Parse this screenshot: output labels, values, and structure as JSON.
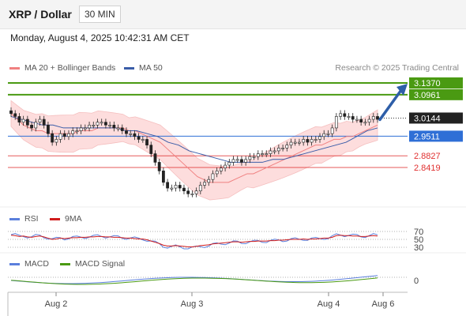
{
  "header": {
    "title": "XRP / Dollar",
    "interval": "30 MIN"
  },
  "datetime": "Monday, August 4, 2025 10:42:31 AM CET",
  "legend": {
    "ma20": "MA 20 + Bollinger Bands",
    "ma50": "MA 50",
    "credit": "Research © 2025 Trading Central",
    "rsi": "RSI",
    "rsi_ma": "9MA",
    "macd": "MACD",
    "macd_signal": "MACD Signal"
  },
  "colors": {
    "ma20": "#f08080",
    "ma50": "#3a5ca8",
    "bb_fill": "#fdd8d8",
    "target": "#4a9a12",
    "pivot": "#2f6fd6",
    "support": "#e03030",
    "last_price": "#222222",
    "arrow": "#2e5ea8",
    "rsi": "#5b7fdc",
    "rsi_ma": "#d01c1c",
    "macd": "#5b7fdc",
    "macd_signal": "#4a9a12"
  },
  "chart_data": {
    "type": "candlestick",
    "price_levels": [
      {
        "label": "3.1370",
        "value": 3.137,
        "kind": "target"
      },
      {
        "label": "3.0961",
        "value": 3.0961,
        "kind": "target"
      },
      {
        "label": "3.0144",
        "value": 3.0144,
        "kind": "last"
      },
      {
        "label": "2.9511",
        "value": 2.9511,
        "kind": "pivot"
      },
      {
        "label": "2.8827",
        "value": 2.8827,
        "kind": "support"
      },
      {
        "label": "2.8419",
        "value": 2.8419,
        "kind": "support"
      }
    ],
    "x_labels": [
      "Aug 2",
      "Aug 3",
      "Aug 4",
      "Aug 6"
    ],
    "close": [
      3.03,
      3.02,
      3.0,
      3.01,
      2.99,
      2.98,
      3.0,
      3.01,
      2.99,
      2.96,
      2.93,
      2.94,
      2.96,
      2.95,
      2.96,
      2.97,
      2.97,
      2.98,
      2.98,
      2.99,
      2.99,
      3.0,
      3.0,
      2.99,
      2.99,
      2.98,
      2.98,
      2.97,
      2.96,
      2.96,
      2.95,
      2.94,
      2.94,
      2.92,
      2.89,
      2.86,
      2.83,
      2.79,
      2.77,
      2.77,
      2.78,
      2.77,
      2.76,
      2.75,
      2.75,
      2.76,
      2.78,
      2.79,
      2.8,
      2.82,
      2.83,
      2.84,
      2.85,
      2.86,
      2.87,
      2.87,
      2.86,
      2.87,
      2.88,
      2.88,
      2.89,
      2.89,
      2.89,
      2.9,
      2.9,
      2.91,
      2.91,
      2.92,
      2.93,
      2.93,
      2.93,
      2.94,
      2.93,
      2.94,
      2.94,
      2.95,
      2.96,
      2.96,
      2.98,
      3.02,
      3.03,
      3.02,
      3.02,
      3.01,
      3.01,
      3.0,
      3.0,
      3.01,
      3.02,
      3.01
    ],
    "ma20": [
      3.03,
      3.01,
      2.99,
      2.98,
      2.97,
      2.97,
      2.96,
      2.96,
      2.96,
      2.96,
      2.96,
      2.97,
      2.97,
      2.97,
      2.98,
      2.98,
      2.98,
      2.98,
      2.98,
      2.97,
      2.97,
      2.96,
      2.95,
      2.94,
      2.93,
      2.91,
      2.89,
      2.87,
      2.85,
      2.83,
      2.81,
      2.8,
      2.79,
      2.79,
      2.79,
      2.79,
      2.8,
      2.81,
      2.82,
      2.82,
      2.83,
      2.84,
      2.85,
      2.86,
      2.87,
      2.88,
      2.89,
      2.9,
      2.91,
      2.92,
      2.92,
      2.93,
      2.94,
      2.94,
      2.95,
      2.95,
      2.96,
      2.97,
      2.98,
      2.99
    ],
    "ma50": [
      3.02,
      3.01,
      3.0,
      2.99,
      2.99,
      2.98,
      2.98,
      2.98,
      2.98,
      2.98,
      2.98,
      2.97,
      2.97,
      2.96,
      2.95,
      2.93,
      2.92,
      2.9,
      2.89,
      2.88,
      2.87,
      2.86,
      2.86,
      2.86,
      2.86,
      2.87,
      2.87,
      2.88,
      2.89,
      2.9,
      2.91,
      2.92,
      2.93,
      2.95,
      2.97,
      2.98
    ],
    "rsi_range": [
      30,
      70
    ],
    "rsi_labels": [
      "70",
      "50",
      "30"
    ],
    "macd_zero_label": "0"
  }
}
